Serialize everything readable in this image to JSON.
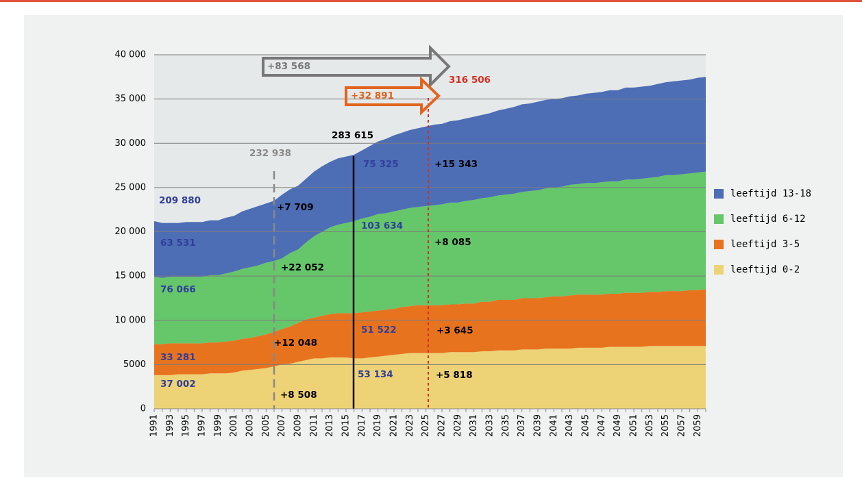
{
  "chart_data": {
    "type": "stacked_area",
    "categories": [
      "1991",
      null,
      "1993",
      null,
      "1995",
      null,
      "1997",
      null,
      "1999",
      null,
      "2001",
      null,
      "2003",
      null,
      "2005",
      null,
      "2007",
      null,
      "2009",
      null,
      "2011",
      null,
      "2013",
      null,
      "2015",
      null,
      "2017",
      null,
      "2019",
      null,
      "2021",
      null,
      "2023",
      null,
      "2025",
      null,
      "2027",
      null,
      "2029",
      null,
      "2031",
      null,
      "2033",
      null,
      "2035",
      null,
      "2037",
      null,
      "2039",
      null,
      "2041",
      null,
      "2043",
      null,
      "2045",
      null,
      "2047",
      null,
      "2049",
      null,
      "2051",
      null,
      "2053",
      null,
      "2055",
      null,
      "2057",
      null,
      "2059",
      null
    ],
    "series": [
      {
        "name": "leeftijd 0-2",
        "color": "#eed276",
        "values": [
          3800,
          3800,
          3800,
          3900,
          3900,
          3900,
          3900,
          4000,
          4000,
          4000,
          4100,
          4300,
          4400,
          4500,
          4600,
          4800,
          5000,
          5100,
          5300,
          5500,
          5700,
          5700,
          5800,
          5800,
          5800,
          5700,
          5700,
          5800,
          5900,
          6000,
          6100,
          6200,
          6300,
          6300,
          6300,
          6300,
          6300,
          6400,
          6400,
          6400,
          6400,
          6500,
          6500,
          6600,
          6600,
          6600,
          6700,
          6700,
          6700,
          6800,
          6800,
          6800,
          6800,
          6900,
          6900,
          6900,
          6900,
          7000,
          7000,
          7000,
          7000,
          7000,
          7100,
          7100,
          7100,
          7100,
          7100,
          7100,
          7100,
          7100
        ]
      },
      {
        "name": "leeftijd 3-5",
        "color": "#e8731f",
        "values": [
          3500,
          3500,
          3600,
          3500,
          3500,
          3500,
          3500,
          3500,
          3500,
          3600,
          3600,
          3600,
          3600,
          3700,
          3800,
          3900,
          4000,
          4200,
          4400,
          4600,
          4600,
          4800,
          4900,
          5000,
          5000,
          5100,
          5200,
          5200,
          5200,
          5200,
          5200,
          5300,
          5300,
          5400,
          5400,
          5400,
          5400,
          5400,
          5400,
          5500,
          5500,
          5600,
          5600,
          5700,
          5700,
          5700,
          5800,
          5800,
          5800,
          5800,
          5900,
          5900,
          6000,
          6000,
          6000,
          6000,
          6000,
          6000,
          6000,
          6100,
          6100,
          6100,
          6100,
          6100,
          6200,
          6200,
          6200,
          6300,
          6300,
          6400
        ]
      },
      {
        "name": "leeftijd 6-12",
        "color": "#66c66a",
        "values": [
          7600,
          7500,
          7500,
          7500,
          7500,
          7500,
          7500,
          7600,
          7600,
          7700,
          7800,
          7900,
          8000,
          8000,
          8100,
          8000,
          8000,
          8300,
          8300,
          8700,
          9200,
          9500,
          9800,
          10000,
          10200,
          10400,
          10600,
          10700,
          10900,
          10900,
          11000,
          11000,
          11100,
          11100,
          11200,
          11300,
          11400,
          11500,
          11500,
          11600,
          11700,
          11700,
          11800,
          11800,
          11900,
          12000,
          12000,
          12100,
          12200,
          12300,
          12300,
          12400,
          12500,
          12500,
          12600,
          12600,
          12700,
          12700,
          12700,
          12800,
          12800,
          12900,
          12900,
          13000,
          13100,
          13100,
          13200,
          13200,
          13300,
          13300
        ]
      },
      {
        "name": "leeftijd 13-18",
        "color": "#4d6db5",
        "values": [
          6300,
          6200,
          6100,
          6100,
          6200,
          6200,
          6200,
          6200,
          6200,
          6300,
          6300,
          6500,
          6600,
          6700,
          6700,
          6800,
          7200,
          7200,
          7200,
          7200,
          7300,
          7400,
          7400,
          7500,
          7500,
          7500,
          7700,
          8000,
          8200,
          8400,
          8600,
          8700,
          8800,
          8900,
          9000,
          9100,
          9100,
          9200,
          9300,
          9300,
          9400,
          9400,
          9500,
          9600,
          9700,
          9800,
          9900,
          9900,
          10000,
          10000,
          10000,
          10000,
          10000,
          10000,
          10100,
          10200,
          10200,
          10300,
          10300,
          10400,
          10400,
          10400,
          10400,
          10500,
          10500,
          10600,
          10600,
          10600,
          10700,
          10700
        ]
      }
    ],
    "ylim": [
      0,
      40000
    ],
    "yticks": [
      0,
      5000,
      {
        "value": 10000,
        "label": "10 000"
      },
      {
        "value": 15000,
        "label": "15 000"
      },
      {
        "value": 20000,
        "label": "20 000"
      },
      {
        "value": 25000,
        "label": "25 000"
      },
      {
        "value": 30000,
        "label": "30 000"
      },
      {
        "value": 35000,
        "label": "35 000"
      },
      {
        "value": 40000,
        "label": "40 000"
      }
    ],
    "grid": true,
    "legend": "right",
    "annotations": [
      {
        "text": "+83 568",
        "color": "#777777"
      },
      {
        "text": "316 506",
        "color": "#d42d20"
      },
      {
        "text": "+32 891",
        "color": "#e2641e"
      },
      {
        "text": "283 615",
        "color": "#000000"
      },
      {
        "text": "232 938",
        "color": "#888888"
      },
      {
        "text": "75 325",
        "color": "#2f3f9a"
      },
      {
        "text": "+15 343",
        "color": "#000000"
      },
      {
        "text": "209 880",
        "color": "#2f3f9a"
      },
      {
        "text": "+7 709",
        "color": "#000000"
      },
      {
        "text": "63 531",
        "color": "#2f3f9a"
      },
      {
        "text": "103 634",
        "color": "#2f3f9a"
      },
      {
        "text": "+8 085",
        "color": "#000000"
      },
      {
        "text": "+22 052",
        "color": "#000000"
      },
      {
        "text": "76 066",
        "color": "#2f3f9a"
      },
      {
        "text": "51 522",
        "color": "#2f3f9a"
      },
      {
        "text": "+3 645",
        "color": "#000000"
      },
      {
        "text": "+12 048",
        "color": "#000000"
      },
      {
        "text": "33 281",
        "color": "#2f3f9a"
      },
      {
        "text": "53 134",
        "color": "#2f3f9a"
      },
      {
        "text": "+5 818",
        "color": "#000000"
      },
      {
        "text": "37 002",
        "color": "#2f3f9a"
      },
      {
        "text": "+8 508",
        "color": "#000000"
      }
    ]
  }
}
